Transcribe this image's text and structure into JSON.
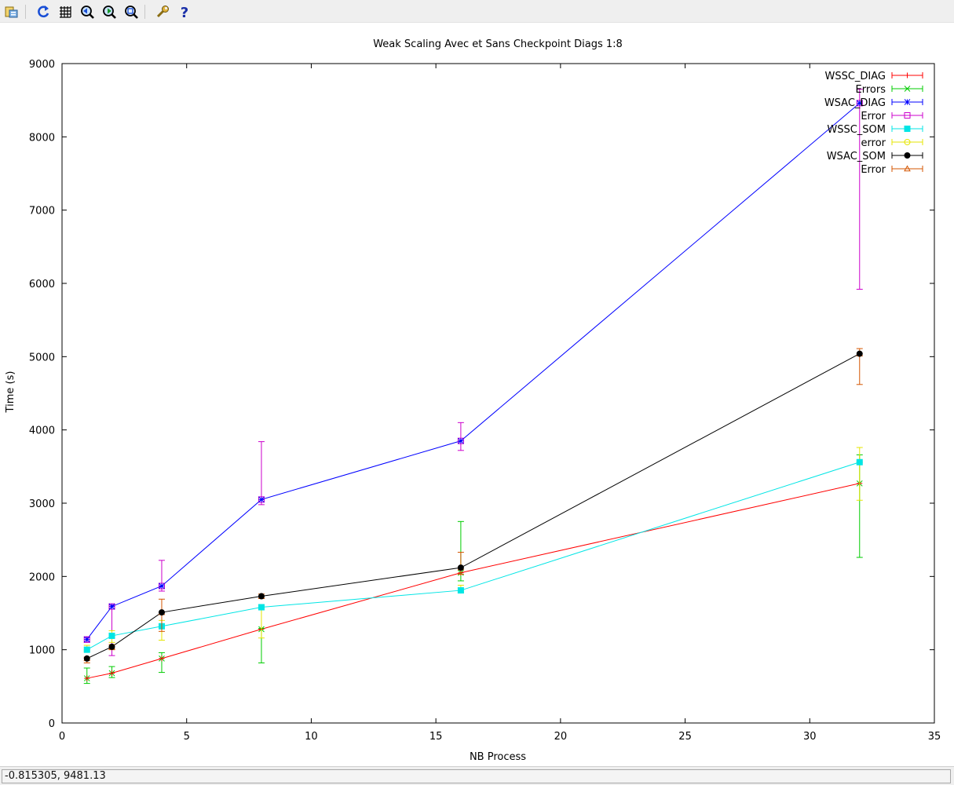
{
  "toolbar": {
    "icons": [
      "export-icon",
      "replot-icon",
      "grid-icon",
      "zoom-previous-icon",
      "zoom-next-icon",
      "zoom-unzoom-icon",
      "settings-icon",
      "help-icon"
    ]
  },
  "status": {
    "coordinates": "-0.815305, 9481.13"
  },
  "chart_data": {
    "type": "line",
    "title": "Weak Scaling Avec et Sans Checkpoint Diags 1:8",
    "xlabel": "NB Process",
    "ylabel": "Time (s)",
    "xlim": [
      0,
      35
    ],
    "ylim": [
      0,
      9000
    ],
    "xticks": [
      0,
      5,
      10,
      15,
      20,
      25,
      30,
      35
    ],
    "yticks": [
      0,
      1000,
      2000,
      3000,
      4000,
      5000,
      6000,
      7000,
      8000,
      9000
    ],
    "grid": false,
    "legend_position": "top-right",
    "legend": [
      {
        "label": "WSSC_DIAG",
        "color": "#ff0000",
        "marker": "plus"
      },
      {
        "label": "Errors",
        "color": "#00cc00",
        "marker": "cross"
      },
      {
        "label": "WSAC_DIAG",
        "color": "#0000ff",
        "marker": "star"
      },
      {
        "label": "Error",
        "color": "#cc00cc",
        "marker": "square"
      },
      {
        "label": "WSSC_SOM",
        "color": "#00e5e5",
        "marker": "filled-square"
      },
      {
        "label": "error",
        "color": "#e5e500",
        "marker": "circle"
      },
      {
        "label": "WSAC_SOM",
        "color": "#000000",
        "marker": "filled-circle"
      },
      {
        "label": "Error",
        "color": "#d45500",
        "marker": "triangle"
      }
    ],
    "series": [
      {
        "color": "#ff0000",
        "marker": "plus",
        "x": [
          1,
          2,
          4,
          8,
          16,
          32
        ],
        "y": [
          610,
          680,
          880,
          1280,
          2050,
          3270
        ],
        "err_color": "#00cc00",
        "err_marker": "cross",
        "err_low": [
          540,
          620,
          690,
          820,
          1940,
          2260
        ],
        "err_high": [
          750,
          770,
          960,
          1290,
          2750,
          3660
        ]
      },
      {
        "color": "#0000ff",
        "marker": "star",
        "x": [
          1,
          2,
          4,
          8,
          16,
          32
        ],
        "y": [
          1140,
          1590,
          1870,
          3050,
          3850,
          8460
        ],
        "err_color": "#cc00cc",
        "err_marker": "square",
        "err_low": [
          1100,
          920,
          1800,
          2980,
          3720,
          5920
        ],
        "err_high": [
          1170,
          1610,
          2220,
          3840,
          4100,
          8650
        ]
      },
      {
        "color": "#00e5e5",
        "marker": "filled-square",
        "x": [
          1,
          2,
          4,
          8,
          16,
          32
        ],
        "y": [
          1000,
          1190,
          1320,
          1580,
          1810,
          3560
        ],
        "err_color": "#e5e500",
        "err_marker": "circle",
        "err_low": [
          980,
          1100,
          1130,
          1160,
          1780,
          3040
        ],
        "err_high": [
          1060,
          1260,
          1400,
          1610,
          1880,
          3760
        ]
      },
      {
        "color": "#000000",
        "marker": "filled-circle",
        "x": [
          1,
          2,
          4,
          8,
          16,
          32
        ],
        "y": [
          880,
          1040,
          1510,
          1730,
          2120,
          5040
        ],
        "err_color": "#d45500",
        "err_marker": "triangle",
        "err_low": [
          820,
          1000,
          1250,
          1700,
          2030,
          4620
        ],
        "err_high": [
          900,
          1070,
          1690,
          1760,
          2330,
          5110
        ]
      }
    ]
  }
}
